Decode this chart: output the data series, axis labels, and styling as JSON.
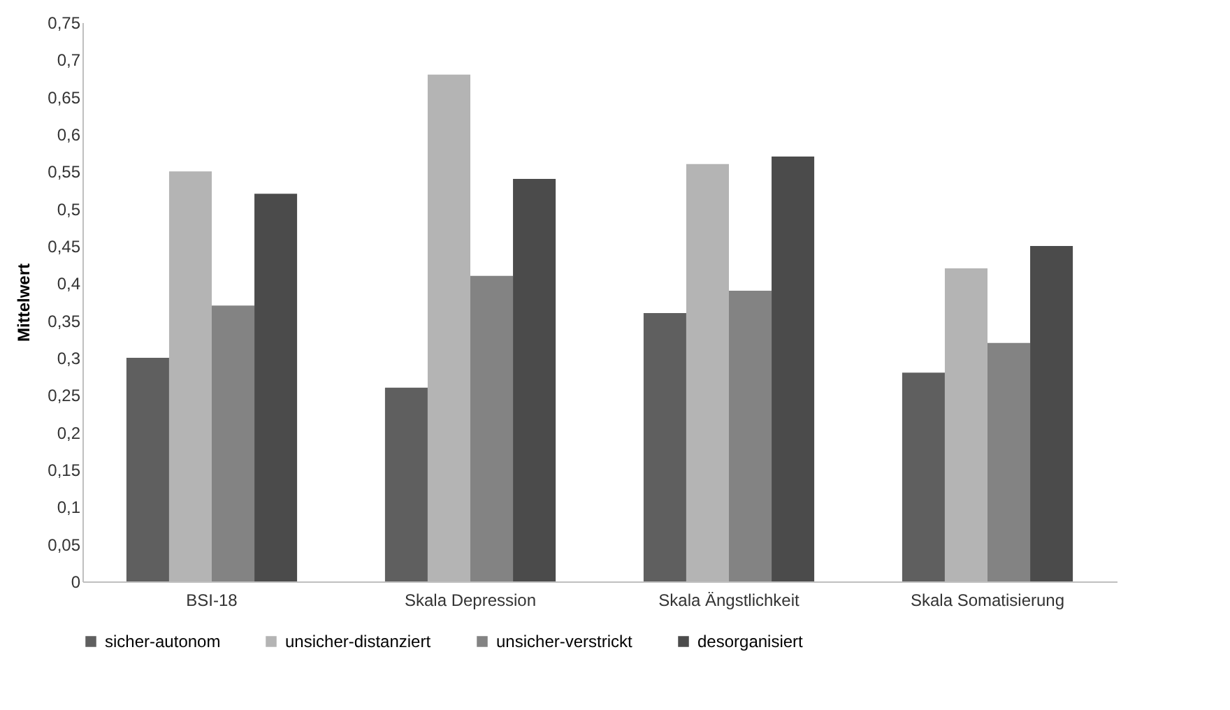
{
  "chart_data": {
    "type": "bar",
    "ylabel": "Mittelwert",
    "categories": [
      "BSI-18",
      "Skala Depression",
      "Skala Ängstlichkeit",
      "Skala Somatisierung"
    ],
    "series": [
      {
        "name": "sicher-autonom",
        "color": "#5f5f5f",
        "values": [
          0.3,
          0.26,
          0.36,
          0.28
        ]
      },
      {
        "name": "unsicher-distanziert",
        "color": "#b4b4b4",
        "values": [
          0.55,
          0.68,
          0.56,
          0.42
        ]
      },
      {
        "name": "unsicher-verstrickt",
        "color": "#838383",
        "values": [
          0.37,
          0.41,
          0.39,
          0.32
        ]
      },
      {
        "name": "desorganisiert",
        "color": "#4b4b4b",
        "values": [
          0.52,
          0.54,
          0.57,
          0.45
        ]
      }
    ],
    "ylim": [
      0,
      0.75
    ],
    "yticks": [
      0,
      {
        "value": 0.05,
        "label": "0,05"
      },
      {
        "value": 0.1,
        "label": "0,1"
      },
      {
        "value": 0.15,
        "label": "0,15"
      },
      {
        "value": 0.2,
        "label": "0,2"
      },
      {
        "value": 0.25,
        "label": "0,25"
      },
      {
        "value": 0.3,
        "label": "0,3"
      },
      {
        "value": 0.35,
        "label": "0,35"
      },
      {
        "value": 0.4,
        "label": "0,4"
      },
      {
        "value": 0.45,
        "label": "0,45"
      },
      {
        "value": 0.5,
        "label": "0,5"
      },
      {
        "value": 0.55,
        "label": "0,55"
      },
      {
        "value": 0.6,
        "label": "0,6"
      },
      {
        "value": 0.65,
        "label": "0,65"
      },
      {
        "value": 0.7,
        "label": "0,7"
      },
      {
        "value": 0.75,
        "label": "0,75"
      }
    ],
    "grid": false,
    "legend": "bottom"
  }
}
